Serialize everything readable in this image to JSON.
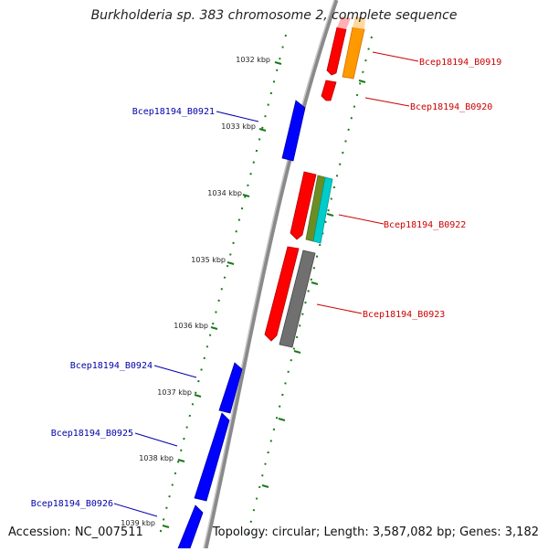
{
  "title": "Burkholderia sp. 383 chromosome 2, complete sequence",
  "footer": {
    "accession": "Accession: NC_007511",
    "topology": "Topology: circular; Length: 3,587,082 bp; Genes: 3,182"
  },
  "kbp_labels": [
    "1032 kbp",
    "1033 kbp",
    "1034 kbp",
    "1035 kbp",
    "1036 kbp",
    "1037 kbp",
    "1038 kbp",
    "1039 kbp"
  ],
  "genes": [
    {
      "locus": "Bcep18194_B0919",
      "color": "#cc0000"
    },
    {
      "locus": "Bcep18194_B0920",
      "color": "#cc0000"
    },
    {
      "locus": "Bcep18194_B0921",
      "color": "#0000aa"
    },
    {
      "locus": "Bcep18194_B0922",
      "color": "#cc0000"
    },
    {
      "locus": "Bcep18194_B0923",
      "color": "#cc0000"
    },
    {
      "locus": "Bcep18194_B0924",
      "color": "#0000aa"
    },
    {
      "locus": "Bcep18194_B0925",
      "color": "#0000aa"
    },
    {
      "locus": "Bcep18194_B0926",
      "color": "#0000aa"
    }
  ],
  "colors": {
    "forward_gene": "#ff0000",
    "reverse_gene": "#0000ff",
    "orange_feature": "#ff9900",
    "olive_feature": "#6b8e23",
    "cyan_feature": "#00cccc",
    "gray_feature": "#707070",
    "backbone": "#888888",
    "tick": "#1a7a1a"
  }
}
